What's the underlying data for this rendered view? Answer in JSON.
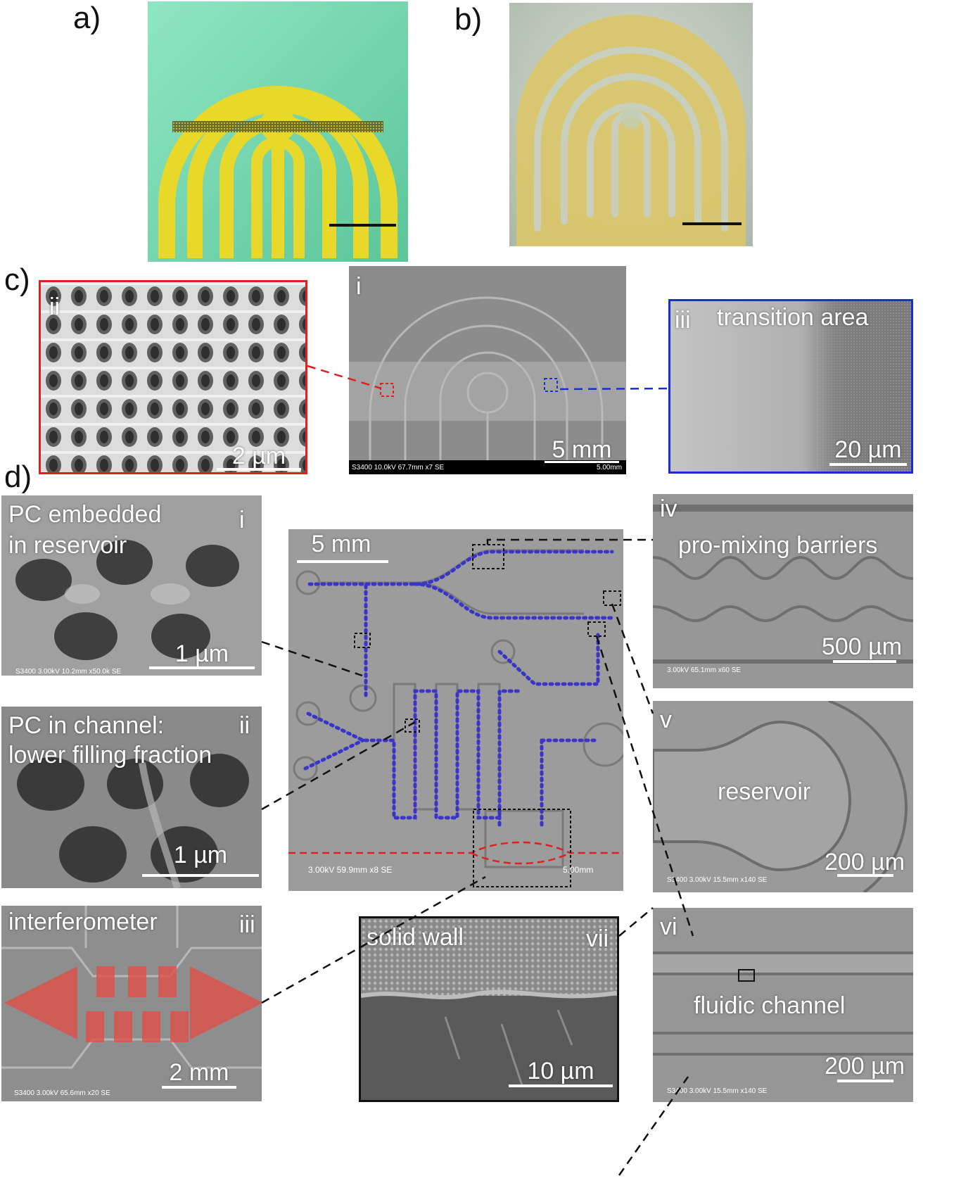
{
  "panel_labels": {
    "a": "a)",
    "b": "b)",
    "c": "c)",
    "d": "d)"
  },
  "c": {
    "ii": {
      "roman": "ii",
      "scale": "2 µm"
    },
    "i": {
      "roman": "i",
      "scale": "5 mm",
      "meta": "S3400 10.0kV 67.7mm x7 SE",
      "meta_scale": "5.00mm"
    },
    "iii": {
      "roman": "iii",
      "title": "transition area",
      "scale": "20 µm"
    }
  },
  "d": {
    "i": {
      "roman": "i",
      "title_line1": "PC embedded",
      "title_line2": "in reservoir",
      "scale": "1 µm",
      "meta": "S3400 3.00kV 10.2mm x50.0k SE"
    },
    "ii": {
      "roman": "ii",
      "title_line1": "PC in channel:",
      "title_line2": "lower filling fraction",
      "scale": "1 µm"
    },
    "iii": {
      "roman": "iii",
      "title": "interferometer",
      "scale": "2 mm",
      "meta": "S3400 3.00kV 65.6mm x20 SE"
    },
    "center": {
      "scale": "5 mm",
      "meta": "3.00kV 59.9mm x8 SE",
      "meta_scale": "5.00mm"
    },
    "iv": {
      "roman": "iv",
      "title": "pro-mixing barriers",
      "scale": "500 µm",
      "meta": "3.00kV 65.1mm x60 SE"
    },
    "v": {
      "roman": "v",
      "title": "reservoir",
      "scale": "200 µm",
      "meta": "S3400 3.00kV 15.5mm x140 SE"
    },
    "vi": {
      "roman": "vi",
      "title": "fluidic channel",
      "scale": "200 µm",
      "meta": "S3400 3.00kV 15.5mm x140 SE"
    },
    "vii": {
      "roman": "vii",
      "title": "solid wall",
      "scale": "10 µm"
    }
  },
  "colors": {
    "yellow": "#e8d82a",
    "mint": "#7fdcb4",
    "sem_grey": "#949494",
    "red_frame": "#e02020",
    "blue_frame": "#1a2fd0",
    "blue_dots": "#3b34c9",
    "red_overlay": "#e0504a"
  }
}
